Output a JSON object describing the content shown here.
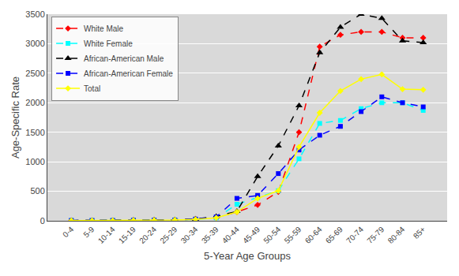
{
  "chart_data": {
    "type": "line",
    "xlabel": "5-Year Age Groups",
    "ylabel": "Age-Specific Rate",
    "categories": [
      "0-4",
      "5-9",
      "10-14",
      "15-19",
      "20-24",
      "25-29",
      "30-34",
      "35-39",
      "40-44",
      "45-49",
      "50-54",
      "55-59",
      "60-64",
      "65-69",
      "70-74",
      "75-79",
      "80-84",
      "85+"
    ],
    "series": [
      {
        "name": "White Male",
        "color": "#ff0000",
        "marker": "diamond",
        "line_style": "dashed",
        "values": [
          5,
          5,
          5,
          8,
          10,
          15,
          30,
          55,
          150,
          270,
          490,
          1500,
          2950,
          3150,
          3200,
          3200,
          3100,
          3100
        ]
      },
      {
        "name": "White Female",
        "color": "#00ffff",
        "marker": "square",
        "line_style": "dashed",
        "values": [
          5,
          5,
          5,
          8,
          10,
          15,
          25,
          50,
          280,
          390,
          510,
          1050,
          1650,
          1700,
          1900,
          2000,
          2000,
          1870
        ]
      },
      {
        "name": "African-American Male",
        "color": "#000000",
        "marker": "triangle-up",
        "line_style": "dashed",
        "values": [
          5,
          5,
          5,
          10,
          12,
          18,
          30,
          75,
          160,
          750,
          1270,
          1950,
          2850,
          3280,
          3500,
          3430,
          3050,
          3020
        ]
      },
      {
        "name": "African-American Female",
        "color": "#0000ff",
        "marker": "square",
        "line_style": "dashed",
        "values": [
          5,
          5,
          5,
          8,
          10,
          12,
          28,
          65,
          380,
          430,
          800,
          1200,
          1450,
          1600,
          1850,
          2100,
          2000,
          1930
        ]
      },
      {
        "name": "Total",
        "color": "#ffff00",
        "marker": "diamond",
        "line_style": "solid",
        "values": [
          5,
          5,
          5,
          8,
          10,
          15,
          25,
          50,
          150,
          380,
          510,
          1250,
          1830,
          2200,
          2400,
          2480,
          2230,
          2220
        ]
      }
    ],
    "ylim": [
      0,
      3500
    ],
    "yticks": [
      0,
      500,
      1000,
      1500,
      2000,
      2500,
      3000,
      3500
    ],
    "grid": true,
    "legend": "upper left"
  }
}
